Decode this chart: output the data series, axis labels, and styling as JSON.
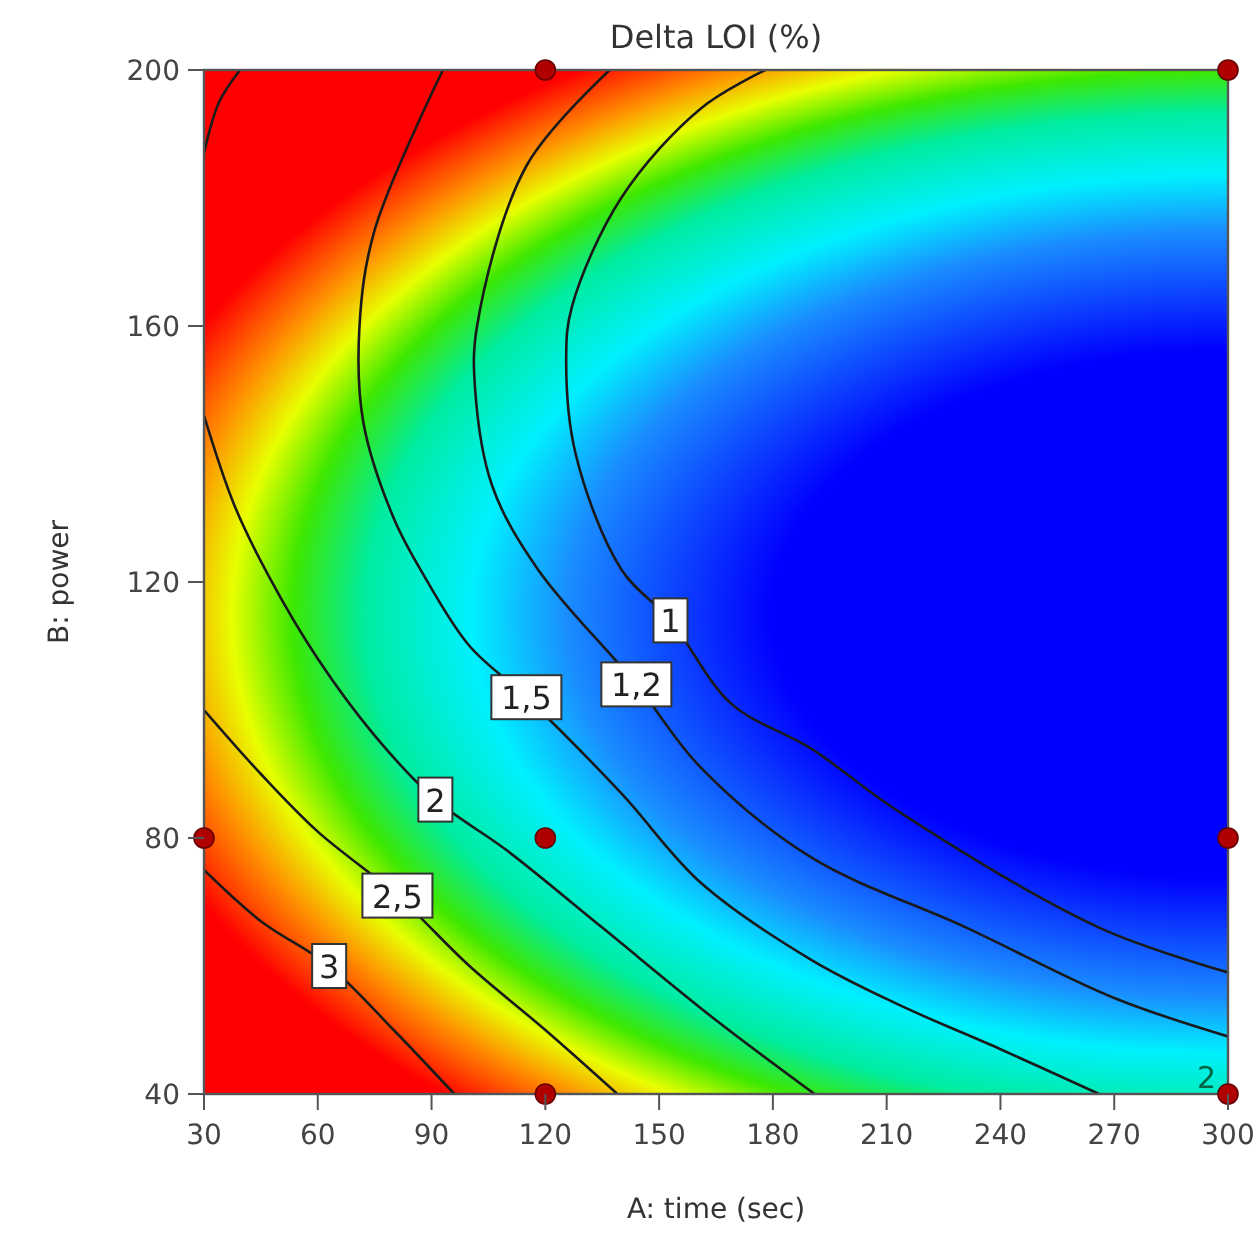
{
  "chart_data": {
    "type": "line",
    "title": "Delta LOI (%)",
    "xlabel": "A: time (sec)",
    "ylabel": "B: power",
    "xlim": [
      30,
      300
    ],
    "xticks": [
      30,
      60,
      90,
      120,
      150,
      180,
      210,
      240,
      270,
      300
    ],
    "ylim": [
      40,
      200
    ],
    "yticks": [
      40,
      80,
      120,
      160,
      200
    ],
    "grid": false,
    "series": [
      {
        "name": "1",
        "color": "#1a1a1a",
        "x": [
          178,
          161,
          140,
          127,
          125.5,
          128,
          140,
          153,
          169,
          190,
          213.5,
          266,
          300
        ],
        "values": [
          200,
          194,
          180,
          163,
          155,
          140,
          122,
          114,
          101,
          94,
          84,
          66,
          59
        ]
      },
      {
        "name": "1,2",
        "color": "#1a1a1a",
        "x": [
          137,
          115,
          102,
          101.5,
          106,
          118,
          144,
          161,
          190,
          231,
          270,
          300
        ],
        "values": [
          200,
          185,
          160,
          150,
          135,
          122,
          104,
          91,
          77,
          66,
          55,
          49
        ]
      },
      {
        "name": "1,5",
        "color": "#1a1a1a",
        "x": [
          93,
          75,
          71,
          72,
          80,
          88,
          100,
          115,
          140,
          161,
          190,
          213,
          240,
          266
        ],
        "values": [
          200,
          175,
          160,
          145,
          130,
          121,
          110,
          102,
          87,
          73,
          61,
          54,
          47,
          40
        ]
      },
      {
        "name": "2",
        "color": "#1a1a1a",
        "x": [
          30,
          38,
          47,
          60,
          75,
          91,
          110,
          135,
          164,
          191,
          null,
          30,
          34,
          39.5
        ],
        "values": [
          146,
          132,
          121,
          108,
          96,
          86,
          78,
          66,
          52,
          40,
          null,
          187,
          195,
          200
        ]
      },
      {
        "name": "2,5",
        "color": "#1a1a1a",
        "x": [
          30,
          45,
          60,
          81,
          100,
          120,
          139
        ],
        "values": [
          100,
          90,
          81,
          71,
          60,
          50,
          40
        ]
      },
      {
        "name": "3",
        "color": "#1a1a1a",
        "x": [
          30,
          45,
          63,
          80,
          96
        ],
        "values": [
          75,
          67,
          60,
          50,
          40
        ]
      },
      {
        "type": "scatter",
        "color": "#b00000",
        "x": [
          30,
          120,
          120,
          120,
          300,
          300,
          300
        ],
        "values": [
          80,
          200,
          80,
          40,
          200,
          80,
          40
        ]
      }
    ],
    "annotations": [
      "2"
    ]
  }
}
